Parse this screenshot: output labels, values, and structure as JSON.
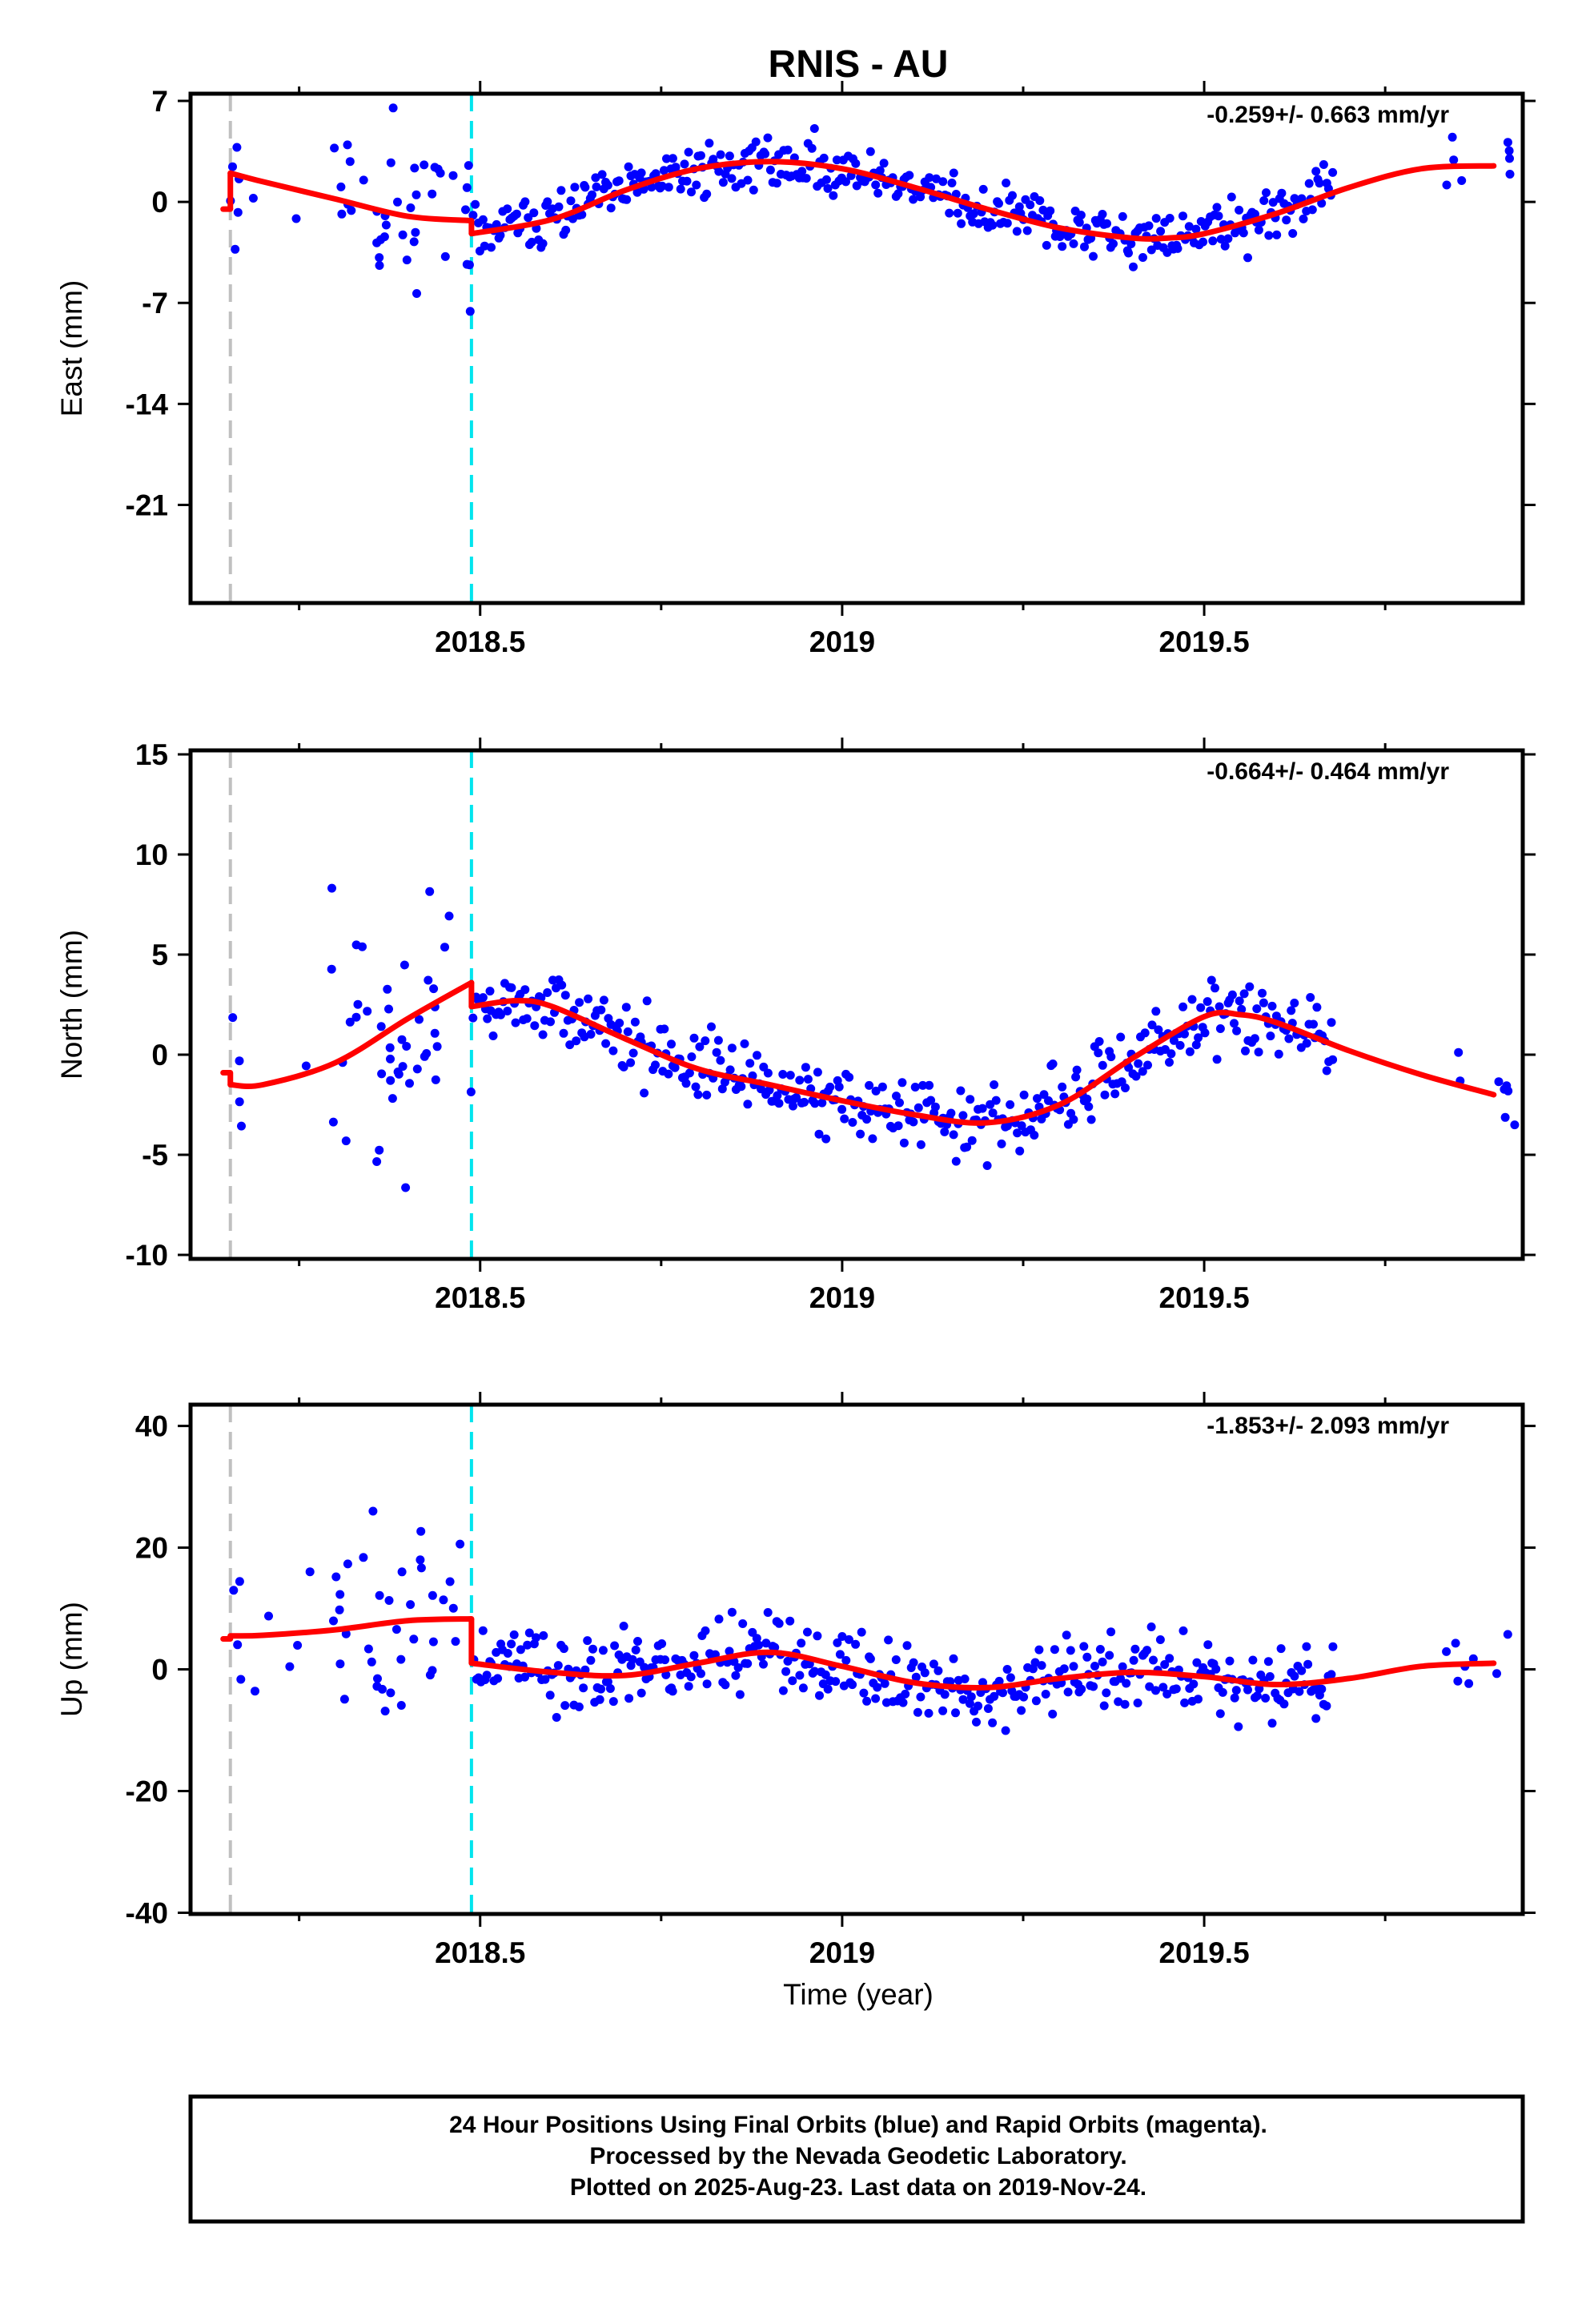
{
  "title": "RNIS - AU",
  "xlabel": "Time (year)",
  "footer": {
    "line1": "24 Hour Positions Using Final Orbits (blue) and Rapid Orbits (magenta).",
    "line2": "Processed by the Nevada Geodetic Laboratory.",
    "line3": "Plotted on 2025-Aug-23. Last data on 2019-Nov-24."
  },
  "colors": {
    "points": "#0000ff",
    "model": "#ff0000",
    "equipment_line": "#c0c0c0",
    "event_line": "#00e5ee"
  },
  "chart_data": [
    {
      "type": "scatter",
      "component": "east",
      "ylabel": "East (mm)",
      "rate": "-0.259+/- 0.663 mm/yr",
      "xlim": [
        2018.1,
        2019.94
      ],
      "ylim": [
        -27.8,
        7.5
      ],
      "yticks": [
        7,
        0,
        -7,
        -14,
        -21
      ],
      "xticks": [
        2018.5,
        2019.0,
        2019.5
      ],
      "vlines": {
        "equipment": 2018.155,
        "event": 2018.488
      },
      "model": {
        "segments": [
          {
            "x": [
              2018.145,
              2018.155
            ],
            "y": [
              -0.5,
              -0.5
            ]
          },
          {
            "x": [
              2018.155,
              2018.2,
              2018.3,
              2018.4,
              2018.488
            ],
            "y": [
              2.0,
              1.4,
              0.2,
              -1.0,
              -1.3
            ]
          },
          {
            "x": [
              2018.488,
              2018.6,
              2018.7,
              2018.8,
              2018.9,
              2019.0,
              2019.1,
              2019.2,
              2019.3,
              2019.4,
              2019.45,
              2019.5,
              2019.6,
              2019.7,
              2019.8,
              2019.9
            ],
            "y": [
              -2.2,
              -1.2,
              0.8,
              2.3,
              2.8,
              2.3,
              1.0,
              -0.5,
              -1.8,
              -2.5,
              -2.5,
              -2.2,
              -0.8,
              1.0,
              2.3,
              2.5
            ]
          }
        ]
      }
    },
    {
      "type": "scatter",
      "component": "north",
      "ylabel": "North (mm)",
      "rate": "-0.664+/- 0.464 mm/yr",
      "xlim": [
        2018.1,
        2019.94
      ],
      "ylim": [
        -10.2,
        15.2
      ],
      "yticks": [
        15,
        10,
        5,
        0,
        -5,
        -10
      ],
      "xticks": [
        2018.5,
        2019.0,
        2019.5
      ],
      "vlines": {
        "equipment": 2018.155,
        "event": 2018.488
      },
      "model": {
        "segments": [
          {
            "x": [
              2018.145,
              2018.155
            ],
            "y": [
              -0.9,
              -0.9
            ]
          },
          {
            "x": [
              2018.155,
              2018.2,
              2018.3,
              2018.4,
              2018.488
            ],
            "y": [
              -1.5,
              -1.5,
              -0.4,
              1.8,
              3.6
            ]
          },
          {
            "x": [
              2018.488,
              2018.55,
              2018.6,
              2018.7,
              2018.8,
              2018.9,
              2019.0,
              2019.1,
              2019.2,
              2019.3,
              2019.4,
              2019.5,
              2019.55,
              2019.6,
              2019.7,
              2019.8,
              2019.9
            ],
            "y": [
              2.4,
              2.7,
              2.4,
              0.8,
              -0.7,
              -1.5,
              -2.3,
              -3.0,
              -3.4,
              -2.5,
              -0.2,
              1.9,
              2.0,
              1.6,
              0.2,
              -1.0,
              -2.0
            ]
          }
        ]
      }
    },
    {
      "type": "scatter",
      "component": "up",
      "ylabel": "Up (mm)",
      "rate": "-1.853+/- 2.093 mm/yr",
      "xlim": [
        2018.1,
        2019.94
      ],
      "ylim": [
        -40.2,
        43.5
      ],
      "yticks": [
        40,
        20,
        0,
        -20,
        -40
      ],
      "xticks": [
        2018.5,
        2019.0,
        2019.5
      ],
      "vlines": {
        "equipment": 2018.155,
        "event": 2018.488
      },
      "model": {
        "segments": [
          {
            "x": [
              2018.145,
              2018.155
            ],
            "y": [
              5.0,
              5.0
            ]
          },
          {
            "x": [
              2018.155,
              2018.2,
              2018.3,
              2018.4,
              2018.488
            ],
            "y": [
              5.5,
              5.6,
              6.5,
              8.0,
              8.3
            ]
          },
          {
            "x": [
              2018.488,
              2018.6,
              2018.7,
              2018.8,
              2018.9,
              2019.0,
              2019.1,
              2019.2,
              2019.3,
              2019.4,
              2019.5,
              2019.6,
              2019.7,
              2019.8,
              2019.9
            ],
            "y": [
              1.0,
              -0.5,
              -1.0,
              1.0,
              2.8,
              0.5,
              -2.2,
              -3.0,
              -1.5,
              -0.5,
              -1.2,
              -2.5,
              -1.5,
              0.5,
              1.0
            ]
          }
        ]
      }
    }
  ]
}
